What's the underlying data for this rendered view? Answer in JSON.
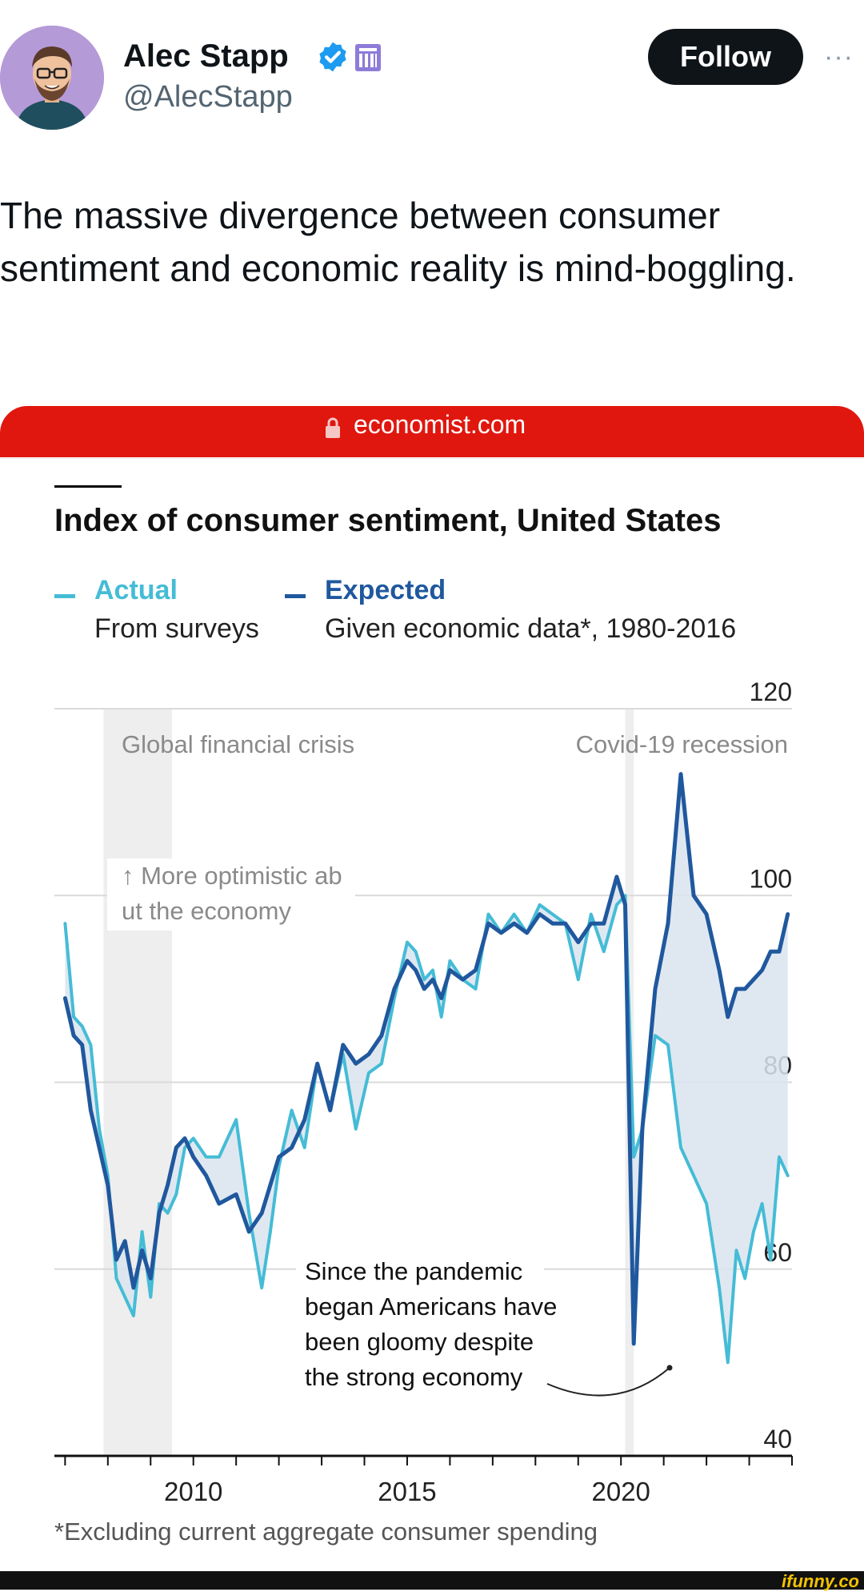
{
  "author": {
    "name": "Alec Stapp",
    "handle": "@AlecStapp"
  },
  "actions": {
    "follow_label": "Follow",
    "more_label": "···"
  },
  "tweet": {
    "text": "The massive divergence between consumer sentiment and economic reality is mind-boggling."
  },
  "link": {
    "domain": "economist.com"
  },
  "colors": {
    "actual": "#45bcd6",
    "expected": "#20589e",
    "gap_fill": "#d9e4ef",
    "shade": "#eeeeee",
    "url_bar": "#e0170e"
  },
  "chart_data": {
    "type": "line",
    "title": "Index of consumer sentiment, United States",
    "legend": {
      "placement": "top-left",
      "items": [
        {
          "label": "Actual",
          "sub": "From surveys"
        },
        {
          "label": "Expected",
          "sub": "Given economic data*, 1980-2016"
        }
      ]
    },
    "ylim": [
      40,
      120
    ],
    "yticks": [
      40,
      60,
      80,
      100,
      120
    ],
    "xlim": [
      2006.75,
      2024
    ],
    "xtick_labels": [
      2010,
      2015,
      2020
    ],
    "grid": true,
    "shaded_periods": [
      {
        "label": "Global financial crisis",
        "start": 2007.9,
        "end": 2009.5
      },
      {
        "label": "Covid-19 recession",
        "start": 2020.1,
        "end": 2020.3
      }
    ],
    "annotations": {
      "optimistic": "↑ More optimistic about the economy",
      "pandemic": "Since the pandemic began Americans have been gloomy despite the strong economy"
    },
    "series": [
      {
        "name": "Actual",
        "x": [
          2007.0,
          2007.2,
          2007.4,
          2007.6,
          2007.8,
          2008.0,
          2008.2,
          2008.4,
          2008.6,
          2008.8,
          2009.0,
          2009.2,
          2009.4,
          2009.6,
          2009.8,
          2010.0,
          2010.3,
          2010.6,
          2011.0,
          2011.3,
          2011.6,
          2011.8,
          2012.0,
          2012.3,
          2012.6,
          2012.9,
          2013.2,
          2013.5,
          2013.8,
          2014.1,
          2014.4,
          2014.7,
          2015.0,
          2015.2,
          2015.4,
          2015.6,
          2015.8,
          2016.0,
          2016.3,
          2016.6,
          2016.9,
          2017.2,
          2017.5,
          2017.8,
          2018.1,
          2018.4,
          2018.7,
          2019.0,
          2019.3,
          2019.6,
          2019.9,
          2020.1,
          2020.3,
          2020.5,
          2020.8,
          2021.1,
          2021.4,
          2021.7,
          2022.0,
          2022.3,
          2022.5,
          2022.7,
          2022.9,
          2023.1,
          2023.3,
          2023.5,
          2023.7,
          2023.9
        ],
        "values": [
          97,
          87,
          86,
          84,
          75,
          70,
          59,
          57,
          55,
          64,
          57,
          67,
          66,
          68,
          73,
          74,
          72,
          72,
          76,
          66,
          58,
          64,
          71,
          77,
          73,
          82,
          77,
          83,
          75,
          81,
          82,
          89,
          95,
          94,
          91,
          92,
          87,
          93,
          91,
          90,
          98,
          96,
          98,
          96,
          99,
          98,
          97,
          91,
          98,
          94,
          99,
          100,
          72,
          75,
          85,
          84,
          73,
          70,
          67,
          58,
          50,
          62,
          59,
          64,
          67,
          61,
          72,
          70
        ]
      },
      {
        "name": "Expected",
        "x": [
          2007.0,
          2007.2,
          2007.4,
          2007.6,
          2007.8,
          2008.0,
          2008.2,
          2008.4,
          2008.6,
          2008.8,
          2009.0,
          2009.2,
          2009.4,
          2009.6,
          2009.8,
          2010.0,
          2010.3,
          2010.6,
          2011.0,
          2011.3,
          2011.6,
          2011.8,
          2012.0,
          2012.3,
          2012.6,
          2012.9,
          2013.2,
          2013.5,
          2013.8,
          2014.1,
          2014.4,
          2014.7,
          2015.0,
          2015.2,
          2015.4,
          2015.6,
          2015.8,
          2016.0,
          2016.3,
          2016.6,
          2016.9,
          2017.2,
          2017.5,
          2017.8,
          2018.1,
          2018.4,
          2018.7,
          2019.0,
          2019.3,
          2019.6,
          2019.9,
          2020.1,
          2020.3,
          2020.5,
          2020.8,
          2021.1,
          2021.4,
          2021.7,
          2022.0,
          2022.3,
          2022.5,
          2022.7,
          2022.9,
          2023.1,
          2023.3,
          2023.5,
          2023.7,
          2023.9
        ],
        "values": [
          89,
          85,
          84,
          77,
          73,
          69,
          61,
          63,
          58,
          62,
          59,
          66,
          69,
          73,
          74,
          72,
          70,
          67,
          68,
          64,
          66,
          69,
          72,
          73,
          76,
          82,
          77,
          84,
          82,
          83,
          85,
          90,
          93,
          92,
          90,
          91,
          89,
          92,
          91,
          92,
          97,
          96,
          97,
          96,
          98,
          97,
          97,
          95,
          97,
          97,
          102,
          99,
          52,
          75,
          90,
          97,
          113,
          100,
          98,
          92,
          87,
          90,
          90,
          91,
          92,
          94,
          94,
          98
        ]
      }
    ]
  },
  "footnote": "*Excluding current aggregate consumer spending",
  "watermark": "ifunny.co"
}
